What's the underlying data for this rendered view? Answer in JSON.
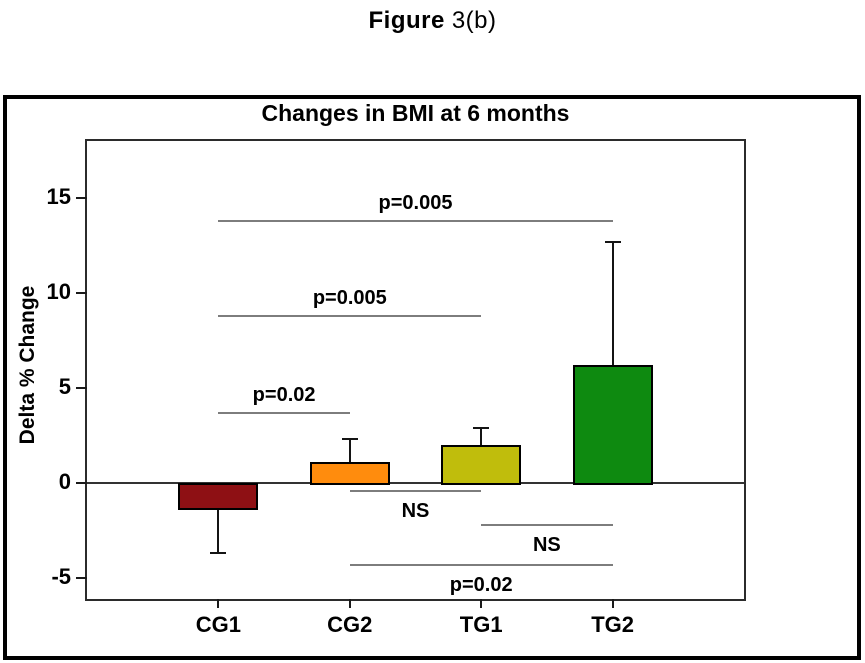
{
  "figure_title": {
    "prefix": "Figure",
    "suffix": "3(b)"
  },
  "chart_data": {
    "type": "bar",
    "title": "Changes in BMI at 6 months",
    "xlabel": "",
    "ylabel": "Delta % Change",
    "categories": [
      "CG1",
      "CG2",
      "TG1",
      "TG2"
    ],
    "values": [
      -1.4,
      1.1,
      2.0,
      6.2
    ],
    "error_to": [
      -3.7,
      2.3,
      2.9,
      12.7
    ],
    "bar_colors": [
      "#8e1014",
      "#ff8c0d",
      "#c0bd0c",
      "#0e8a10"
    ],
    "bar_border_color": "#000000",
    "ylim": [
      -6.1,
      18.0
    ],
    "yticks": [
      15,
      10,
      5,
      0,
      -5
    ],
    "grid": false,
    "legend": "none",
    "comparisons": [
      {
        "from": "CG1",
        "to": "TG2",
        "label": "p=0.005",
        "y": 13.8,
        "label_side": "above"
      },
      {
        "from": "CG1",
        "to": "TG1",
        "label": "p=0.005",
        "y": 8.8,
        "label_side": "above"
      },
      {
        "from": "CG1",
        "to": "CG2",
        "label": "p=0.02",
        "y": 3.7,
        "label_side": "above"
      },
      {
        "from": "CG2",
        "to": "TG1",
        "label": "NS",
        "y": -0.4,
        "label_side": "below"
      },
      {
        "from": "TG1",
        "to": "TG2",
        "label": "NS",
        "y": -2.2,
        "label_side": "below"
      },
      {
        "from": "CG2",
        "to": "TG2",
        "label": "p=0.02",
        "y": -4.3,
        "label_side": "below"
      }
    ],
    "sig_line_color": "#7d7d7d",
    "zero_line_color": "#333333"
  }
}
